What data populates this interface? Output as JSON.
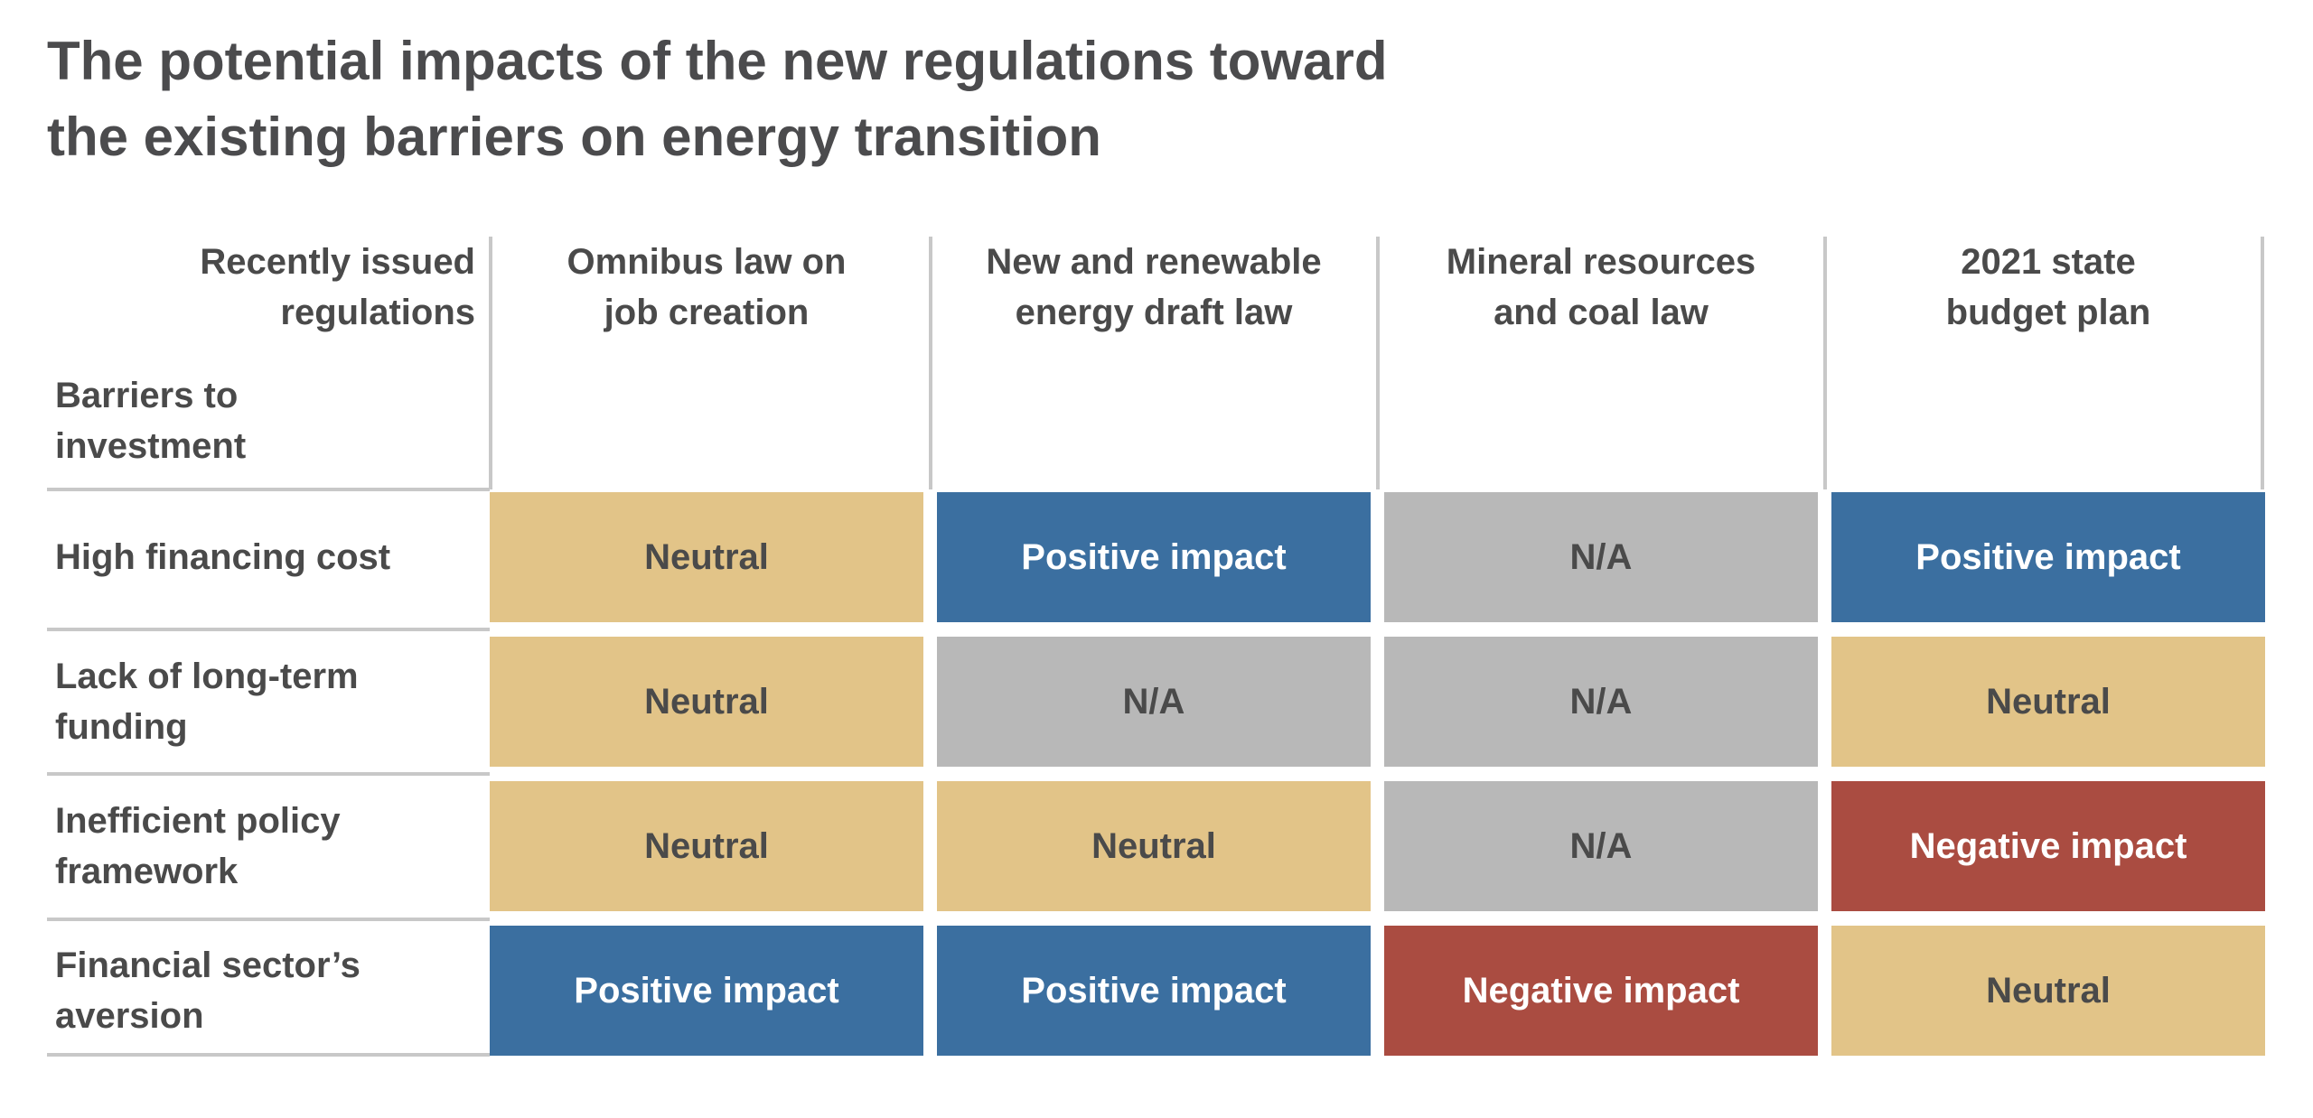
{
  "chart_data": {
    "type": "table",
    "title": "The potential impacts of the new regulations toward the existing barriers on energy transition",
    "title_lines": [
      "The potential impacts of the new regulations toward",
      "the existing barriers on energy transition"
    ],
    "column_axis_label": "Recently issued regulations",
    "column_axis_label_lines": [
      "Recently issued",
      "regulations"
    ],
    "row_axis_label": "Barriers to investment",
    "row_axis_label_lines": [
      "Barriers to",
      "investment"
    ],
    "columns": [
      {
        "name": "Omnibus law on job creation",
        "lines": [
          "Omnibus law on",
          "job creation"
        ]
      },
      {
        "name": "New and renewable energy draft law",
        "lines": [
          "New and renewable",
          "energy draft law"
        ]
      },
      {
        "name": "Mineral resources and coal law",
        "lines": [
          "Mineral resources",
          "and coal law"
        ]
      },
      {
        "name": "2021 state budget plan",
        "lines": [
          "2021 state",
          "budget plan"
        ]
      }
    ],
    "rows": [
      {
        "name": "High financing cost",
        "lines": [
          "High financing cost"
        ],
        "values": [
          "Neutral",
          "Positive impact",
          "N/A",
          "Positive impact"
        ]
      },
      {
        "name": "Lack of long-term funding",
        "lines": [
          "Lack of long-term",
          "funding"
        ],
        "values": [
          "Neutral",
          "N/A",
          "N/A",
          "Neutral"
        ]
      },
      {
        "name": "Inefficient policy framework",
        "lines": [
          "Inefficient policy",
          "framework"
        ],
        "values": [
          "Neutral",
          "Neutral",
          "N/A",
          "Negative impact"
        ]
      },
      {
        "name": "Financial sector’s aversion",
        "lines": [
          "Financial sector’s",
          "aversion"
        ],
        "values": [
          "Positive impact",
          "Positive impact",
          "Negative impact",
          "Neutral"
        ]
      }
    ],
    "category_colors": {
      "Neutral": "#e2c488",
      "Positive impact": "#3b6fa0",
      "N/A": "#b8b8b8",
      "Negative impact": "#aa4c41"
    },
    "category_text_colors": {
      "Neutral": "#4a4a4a",
      "Positive impact": "#ffffff",
      "N/A": "#4a4a4a",
      "Negative impact": "#ffffff"
    },
    "grid": false,
    "legend": "none"
  }
}
